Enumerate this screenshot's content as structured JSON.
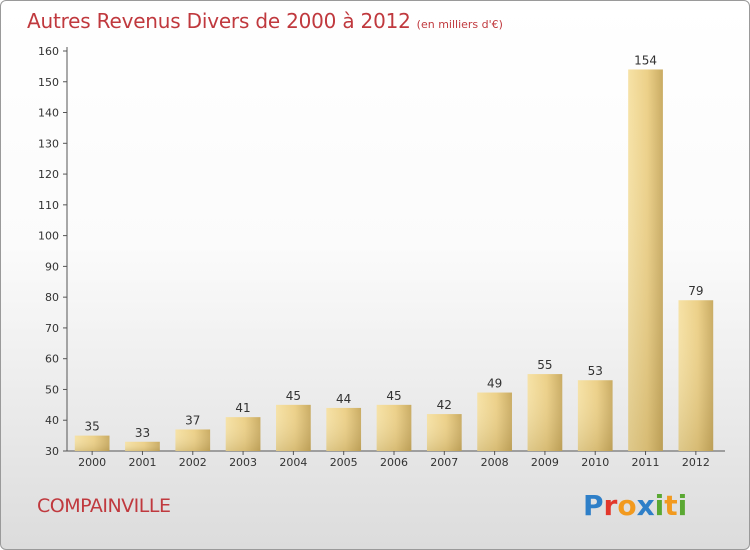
{
  "title": {
    "main": "Autres Revenus Divers de 2000 à 2012",
    "unit": "(en milliers d'€)"
  },
  "city": "COMPAINVILLE",
  "logo": {
    "text": "Proxiti",
    "letters": [
      {
        "ch": "P",
        "color": "#2e7fc8"
      },
      {
        "ch": "r",
        "color": "#e2372b"
      },
      {
        "ch": "o",
        "color": "#f29a1f"
      },
      {
        "ch": "x",
        "color": "#2e7fc8"
      },
      {
        "ch": "i",
        "color": "#5aa832"
      },
      {
        "ch": "t",
        "color": "#f29a1f"
      },
      {
        "ch": "i",
        "color": "#5aa832"
      }
    ]
  },
  "colors": {
    "title": "#c0393e",
    "bar_light": "#f3dc98",
    "bar_dark": "#c9ab62",
    "axis_text": "#333333",
    "grid": "#bbbbbb"
  },
  "chart_data": {
    "type": "bar",
    "title": "Autres Revenus Divers de 2000 à 2012",
    "subtitle": "(en milliers d'€)",
    "xlabel": "",
    "ylabel": "",
    "categories": [
      "2000",
      "2001",
      "2002",
      "2003",
      "2004",
      "2005",
      "2006",
      "2007",
      "2008",
      "2009",
      "2010",
      "2011",
      "2012"
    ],
    "values": [
      35,
      33,
      37,
      41,
      45,
      44,
      45,
      42,
      49,
      55,
      53,
      154,
      79
    ],
    "ylim": [
      30,
      160
    ],
    "yticks": [
      30,
      40,
      50,
      60,
      70,
      80,
      90,
      100,
      110,
      120,
      130,
      140,
      150,
      160
    ],
    "grid": false,
    "data_labels": true,
    "legend": "none"
  }
}
